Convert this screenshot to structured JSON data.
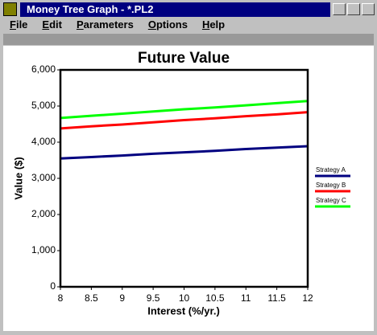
{
  "window": {
    "title": "Money Tree Graph - *.PL2",
    "menu": [
      "File",
      "Edit",
      "Parameters",
      "Options",
      "Help"
    ]
  },
  "chart_data": {
    "type": "line",
    "title": "Future Value",
    "x_label": "Interest (%/yr.)",
    "y_label": "Value ($)",
    "x": [
      8,
      8.5,
      9,
      9.5,
      10,
      10.5,
      11,
      11.5,
      12
    ],
    "series": [
      {
        "name": "Strategy A",
        "color": "#000080",
        "values": [
          3550,
          3590,
          3630,
          3680,
          3720,
          3760,
          3810,
          3850,
          3890
        ]
      },
      {
        "name": "Strategy B",
        "color": "#ff0000",
        "values": [
          4380,
          4440,
          4490,
          4550,
          4610,
          4660,
          4720,
          4770,
          4830
        ]
      },
      {
        "name": "Strategy C",
        "color": "#00ff00",
        "values": [
          4670,
          4730,
          4790,
          4850,
          4910,
          4960,
          5020,
          5080,
          5140
        ]
      }
    ],
    "xlim": [
      8,
      12
    ],
    "ylim": [
      0,
      6000
    ],
    "xticks": [
      8,
      8.5,
      9,
      9.5,
      10,
      10.5,
      11,
      11.5,
      12
    ],
    "yticks": [
      0,
      {
        "value": 1000,
        "label": "1,000"
      },
      {
        "value": 2000,
        "label": "2,000"
      },
      {
        "value": 3000,
        "label": "3,000"
      },
      {
        "value": 4000,
        "label": "4,000"
      },
      {
        "value": 5000,
        "label": "5,000"
      },
      {
        "value": 6000,
        "label": "6,000"
      }
    ],
    "legend": "right"
  }
}
